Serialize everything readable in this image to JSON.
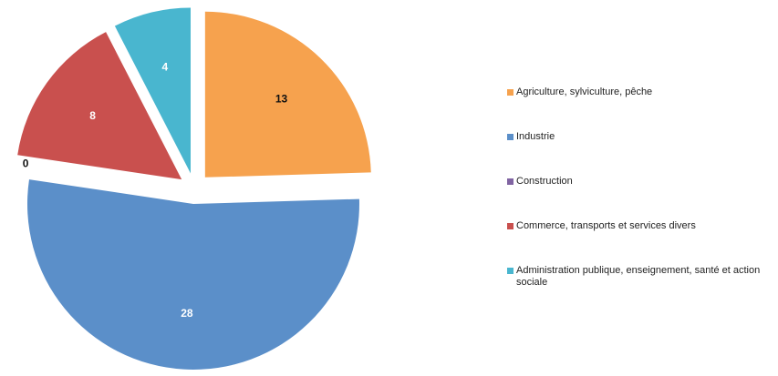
{
  "chart_data": {
    "type": "pie",
    "exploded": true,
    "legend_position": "right",
    "slices": [
      {
        "label": "Agriculture, sylviculture, pêche",
        "value": 13,
        "color": "#F6A24E",
        "label_color": "#111111"
      },
      {
        "label": "Industrie",
        "value": 28,
        "color": "#5B8FC9",
        "label_color": "#ffffff"
      },
      {
        "label": "Construction",
        "value": 0,
        "color": "#8064A2",
        "label_color": "#111111"
      },
      {
        "label": "Commerce, transports et services divers",
        "value": 8,
        "color": "#C9504E",
        "label_color": "#ffffff"
      },
      {
        "label": "Administration publique, enseignement, santé et action sociale",
        "value": 4,
        "color": "#49B6CF",
        "label_color": "#ffffff"
      }
    ]
  }
}
